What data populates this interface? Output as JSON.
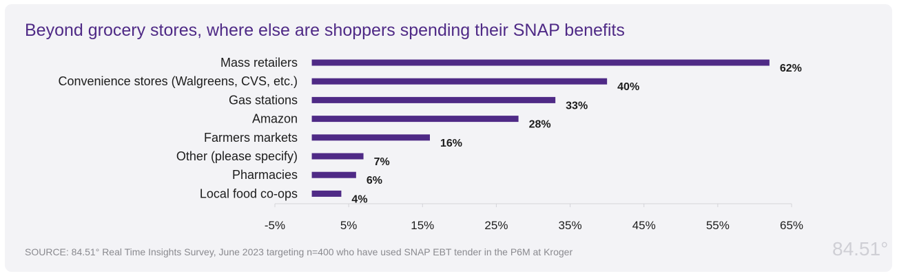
{
  "title": "Beyond grocery stores, where else are shoppers spending their SNAP benefits",
  "source": "SOURCE:  84.51° Real Time Insights Survey, June 2023 targeting n=400 who have used SNAP EBT tender in the P6M at Kroger",
  "logo": "84.51°",
  "colors": {
    "bar": "#4f2a86",
    "title": "#4f2a86",
    "text": "#1c1c1c",
    "grid": "#d4d4d8"
  },
  "chart_data": {
    "type": "bar",
    "orientation": "horizontal",
    "title": "Beyond grocery stores, where else are shoppers spending their SNAP benefits",
    "categories": [
      "Mass retailers",
      "Convenience stores (Walgreens, CVS, etc.)",
      "Gas stations",
      "Amazon",
      "Farmers markets",
      "Other (please specify)",
      "Pharmacies",
      "Local food co-ops"
    ],
    "values": [
      62,
      40,
      33,
      28,
      16,
      7,
      6,
      4
    ],
    "value_labels": [
      "62%",
      "40%",
      "33%",
      "28%",
      "16%",
      "7%",
      "6%",
      "4%"
    ],
    "xlim": [
      -5,
      65
    ],
    "xticks": [
      -5,
      5,
      15,
      25,
      35,
      45,
      55,
      65
    ],
    "xtick_labels": [
      "-5%",
      "5%",
      "15%",
      "25%",
      "35%",
      "45%",
      "55%",
      "65%"
    ],
    "xlabel": "",
    "ylabel": ""
  }
}
